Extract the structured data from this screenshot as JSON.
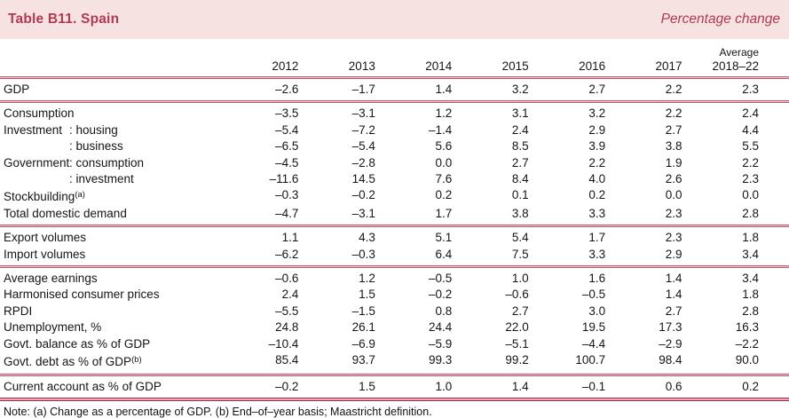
{
  "header": {
    "title": "Table B11. Spain",
    "subtitle": "Percentage change"
  },
  "colors": {
    "band_bg": "#f6e3e1",
    "accent": "#b13a52",
    "rule": "#c05570",
    "rule_strong": "#a32a45"
  },
  "table": {
    "columns": [
      "2012",
      "2013",
      "2014",
      "2015",
      "2016",
      "2017"
    ],
    "avg_header": {
      "line1": "Average",
      "line2": "2018–22"
    },
    "sections": [
      {
        "rows": [
          {
            "label": "GDP",
            "values": [
              "–2.6",
              "–1.7",
              "1.4",
              "3.2",
              "2.7",
              "2.2",
              "2.3"
            ]
          }
        ]
      },
      {
        "rows": [
          {
            "label": "Consumption",
            "values": [
              "–3.5",
              "–3.1",
              "1.2",
              "3.1",
              "3.2",
              "2.2",
              "2.4"
            ]
          },
          {
            "prefix": "Investment",
            "sub": "housing",
            "values": [
              "–5.4",
              "–7.2",
              "–1.4",
              "2.4",
              "2.9",
              "2.7",
              "4.4"
            ]
          },
          {
            "prefix": "",
            "sub": "business",
            "values": [
              "–6.5",
              "–5.4",
              "5.6",
              "8.5",
              "3.9",
              "3.8",
              "5.5"
            ]
          },
          {
            "prefix": "Government",
            "sub": "consumption",
            "values": [
              "–4.5",
              "–2.8",
              "0.0",
              "2.7",
              "2.2",
              "1.9",
              "2.2"
            ]
          },
          {
            "prefix": "",
            "sub": "investment",
            "values": [
              "–11.6",
              "14.5",
              "7.6",
              "8.4",
              "4.0",
              "2.6",
              "2.3"
            ]
          },
          {
            "label": "Stockbuilding",
            "sup": "(a)",
            "values": [
              "–0.3",
              "–0.2",
              "0.2",
              "0.1",
              "0.2",
              "0.0",
              "0.0"
            ]
          },
          {
            "label": "Total domestic demand",
            "values": [
              "–4.7",
              "–3.1",
              "1.7",
              "3.8",
              "3.3",
              "2.3",
              "2.8"
            ]
          }
        ]
      },
      {
        "rows": [
          {
            "label": "Export volumes",
            "values": [
              "1.1",
              "4.3",
              "5.1",
              "5.4",
              "1.7",
              "2.3",
              "1.8"
            ]
          },
          {
            "label": "Import volumes",
            "values": [
              "–6.2",
              "–0.3",
              "6.4",
              "7.5",
              "3.3",
              "2.9",
              "3.4"
            ]
          }
        ]
      },
      {
        "rows": [
          {
            "label": "Average earnings",
            "values": [
              "–0.6",
              "1.2",
              "–0.5",
              "1.0",
              "1.6",
              "1.4",
              "3.4"
            ]
          },
          {
            "label": "Harmonised consumer prices",
            "values": [
              "2.4",
              "1.5",
              "–0.2",
              "–0.6",
              "–0.5",
              "1.4",
              "1.8"
            ]
          },
          {
            "label": "RPDI",
            "values": [
              "–5.5",
              "–1.5",
              "0.8",
              "2.7",
              "3.0",
              "2.7",
              "2.8"
            ]
          },
          {
            "label": "Unemployment, %",
            "values": [
              "24.8",
              "26.1",
              "24.4",
              "22.0",
              "19.5",
              "17.3",
              "16.3"
            ]
          },
          {
            "label": "Govt. balance as % of GDP",
            "values": [
              "–10.4",
              "–6.9",
              "–5.9",
              "–5.1",
              "–4.4",
              "–2.9",
              "–2.2"
            ]
          },
          {
            "label": "Govt. debt as % of GDP",
            "sup": "(b)",
            "values": [
              "85.4",
              "93.7",
              "99.3",
              "99.2",
              "100.7",
              "98.4",
              "90.0"
            ]
          }
        ]
      },
      {
        "rows": [
          {
            "label": "Current account as % of GDP",
            "values": [
              "–0.2",
              "1.5",
              "1.0",
              "1.4",
              "–0.1",
              "0.6",
              "0.2"
            ]
          }
        ]
      }
    ]
  },
  "note": "Note: (a) Change as a percentage of GDP. (b) End–of–year basis; Maastricht definition."
}
